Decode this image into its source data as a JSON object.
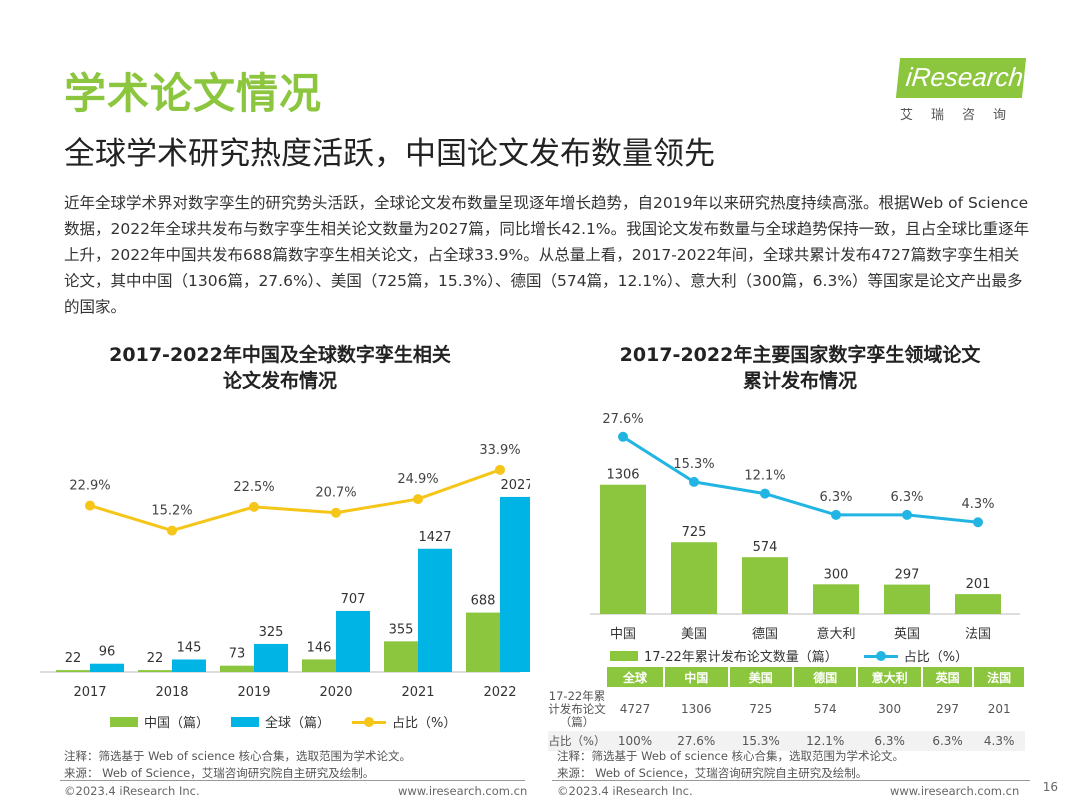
{
  "header": {
    "title": "学术论文情况",
    "subtitle": "全球学术研究热度活跃，中国论文发布数量领先",
    "logo_text": "iResearch",
    "logo_cn": "艾瑞咨询"
  },
  "intro": "近年全球学术界对数字孪生的研究势头活跃，全球论文发布数量呈现逐年增长趋势，自2019年以来研究热度持续高涨。根据Web of Science数据，2022年全球共发布与数字孪生相关论文数量为2027篇，同比增长42.1%。我国论文发布数量与全球趋势保持一致，且占全球比重逐年上升，2022年中国共发布688篇数字孪生相关论文，占全球33.9%。从总量上看，2017-2022年间，全球共累计发布4727篇数字孪生相关论文，其中中国（1306篇，27.6%）、美国（725篇，15.3%）、德国（574篇，12.1%）、意大利（300篇，6.3%）等国家是论文产出最多的国家。",
  "colors": {
    "green": "#8cc63f",
    "cyan": "#00b4e6",
    "yellow": "#f5c518",
    "blue": "#22b5e3"
  },
  "chart_data": [
    {
      "type": "bar",
      "title": "2017-2022年中国及全球数字孪生相关论文发布情况",
      "title_line1": "2017-2022年中国及全球数字孪生相关",
      "title_line2": "论文发布情况",
      "categories": [
        "2017",
        "2018",
        "2019",
        "2020",
        "2021",
        "2022"
      ],
      "series": [
        {
          "name": "中国（篇）",
          "values": [
            22,
            22,
            73,
            146,
            355,
            688
          ]
        },
        {
          "name": "全球（篇）",
          "values": [
            96,
            145,
            325,
            707,
            1427,
            2027
          ]
        }
      ],
      "line_series": {
        "name": "占比（%）",
        "values": [
          22.9,
          15.2,
          22.5,
          20.7,
          24.9,
          33.9
        ],
        "labels": [
          "22.9%",
          "15.2%",
          "22.5%",
          "20.7%",
          "24.9%",
          "33.9%"
        ]
      },
      "ylim": [
        0,
        2200
      ],
      "legend_position": "bottom",
      "note": "注释：筛选基于 Web of science 核心合集，选取范围为学术论文。",
      "source": "来源： Web of Science，艾瑞咨询研究院自主研究及绘制。"
    },
    {
      "type": "bar",
      "title": "2017-2022年主要国家数字孪生领域论文累计发布情况",
      "title_line1": "2017-2022年主要国家数字孪生领域论文",
      "title_line2": "累计发布情况",
      "categories": [
        "中国",
        "美国",
        "德国",
        "意大利",
        "英国",
        "法国"
      ],
      "series": [
        {
          "name": "17-22年累计发布论文数量（篇）",
          "values": [
            1306,
            725,
            574,
            300,
            297,
            201
          ]
        }
      ],
      "line_series": {
        "name": "占比（%）",
        "values": [
          27.6,
          15.3,
          12.1,
          6.3,
          6.3,
          4.3
        ],
        "labels": [
          "27.6%",
          "15.3%",
          "12.1%",
          "6.3%",
          "6.3%",
          "4.3%"
        ]
      },
      "ylim": [
        0,
        1500
      ],
      "legend_position": "bottom",
      "table": {
        "header": [
          "",
          "全球",
          "中国",
          "美国",
          "德国",
          "意大利",
          "英国",
          "法国"
        ],
        "rows": [
          [
            "17-22年累计发布论文（篇）",
            "4727",
            "1306",
            "725",
            "574",
            "300",
            "297",
            "201"
          ],
          [
            "占比（%）",
            "100%",
            "27.6%",
            "15.3%",
            "12.1%",
            "6.3%",
            "6.3%",
            "4.3%"
          ]
        ]
      },
      "note": "注释：筛选基于 Web of science 核心合集，选取范围为学术论文。",
      "source": "来源： Web of Science，艾瑞咨询研究院自主研究及绘制。"
    }
  ],
  "footer": {
    "left_copy": "©2023.4 iResearch Inc.",
    "left_url": "www.iresearch.com.cn",
    "right_copy": "©2023.4 iResearch Inc.",
    "right_url": "www.iresearch.com.cn",
    "page": "16"
  }
}
